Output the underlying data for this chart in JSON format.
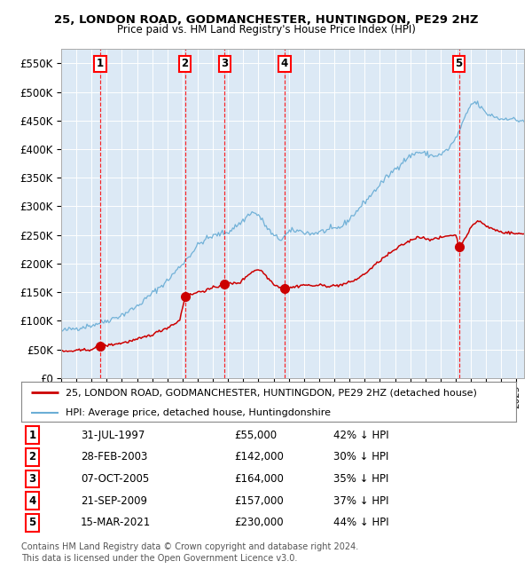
{
  "title1": "25, LONDON ROAD, GODMANCHESTER, HUNTINGDON, PE29 2HZ",
  "title2": "Price paid vs. HM Land Registry's House Price Index (HPI)",
  "bg_color": "#dce9f5",
  "hpi_color": "#6baed6",
  "price_color": "#cc0000",
  "ylim": [
    0,
    575000
  ],
  "yticks": [
    0,
    50000,
    100000,
    150000,
    200000,
    250000,
    300000,
    350000,
    400000,
    450000,
    500000,
    550000
  ],
  "xlim_start": 1995,
  "xlim_end": 2025.5,
  "sales": [
    {
      "num": 1,
      "date": "31-JUL-1997",
      "year": 1997.58,
      "price": 55000,
      "pct": "42%",
      "dir": "↓"
    },
    {
      "num": 2,
      "date": "28-FEB-2003",
      "year": 2003.16,
      "price": 142000,
      "pct": "30%",
      "dir": "↓"
    },
    {
      "num": 3,
      "date": "07-OCT-2005",
      "year": 2005.77,
      "price": 164000,
      "pct": "35%",
      "dir": "↓"
    },
    {
      "num": 4,
      "date": "21-SEP-2009",
      "year": 2009.72,
      "price": 157000,
      "pct": "37%",
      "dir": "↓"
    },
    {
      "num": 5,
      "date": "15-MAR-2021",
      "year": 2021.21,
      "price": 230000,
      "pct": "44%",
      "dir": "↓"
    }
  ],
  "legend_line1": "25, LONDON ROAD, GODMANCHESTER, HUNTINGDON, PE29 2HZ (detached house)",
  "legend_line2": "HPI: Average price, detached house, Huntingdonshire",
  "footer1": "Contains HM Land Registry data © Crown copyright and database right 2024.",
  "footer2": "This data is licensed under the Open Government Licence v3.0.",
  "hpi_anchors": [
    [
      1995.0,
      82000
    ],
    [
      1996.0,
      87000
    ],
    [
      1997.0,
      92000
    ],
    [
      1998.0,
      100000
    ],
    [
      1999.0,
      110000
    ],
    [
      2000.0,
      125000
    ],
    [
      2001.0,
      148000
    ],
    [
      2002.0,
      170000
    ],
    [
      2003.0,
      200000
    ],
    [
      2003.5,
      215000
    ],
    [
      2004.0,
      232000
    ],
    [
      2004.5,
      242000
    ],
    [
      2005.0,
      248000
    ],
    [
      2005.5,
      252000
    ],
    [
      2006.0,
      255000
    ],
    [
      2007.0,
      275000
    ],
    [
      2007.5,
      290000
    ],
    [
      2008.0,
      285000
    ],
    [
      2008.5,
      265000
    ],
    [
      2009.0,
      248000
    ],
    [
      2009.5,
      242000
    ],
    [
      2010.0,
      255000
    ],
    [
      2010.5,
      258000
    ],
    [
      2011.0,
      255000
    ],
    [
      2011.5,
      252000
    ],
    [
      2012.0,
      255000
    ],
    [
      2012.5,
      258000
    ],
    [
      2013.0,
      260000
    ],
    [
      2013.5,
      265000
    ],
    [
      2014.0,
      278000
    ],
    [
      2014.5,
      292000
    ],
    [
      2015.0,
      308000
    ],
    [
      2015.5,
      322000
    ],
    [
      2016.0,
      338000
    ],
    [
      2016.5,
      352000
    ],
    [
      2017.0,
      365000
    ],
    [
      2017.5,
      378000
    ],
    [
      2018.0,
      388000
    ],
    [
      2018.5,
      395000
    ],
    [
      2019.0,
      392000
    ],
    [
      2019.5,
      388000
    ],
    [
      2020.0,
      390000
    ],
    [
      2020.5,
      400000
    ],
    [
      2021.0,
      418000
    ],
    [
      2021.5,
      448000
    ],
    [
      2022.0,
      478000
    ],
    [
      2022.3,
      482000
    ],
    [
      2022.6,
      475000
    ],
    [
      2023.0,
      462000
    ],
    [
      2023.5,
      458000
    ],
    [
      2024.0,
      452000
    ],
    [
      2024.5,
      455000
    ],
    [
      2025.0,
      450000
    ]
  ],
  "price_anchors": [
    [
      1995.0,
      46000
    ],
    [
      1996.0,
      47500
    ],
    [
      1997.0,
      50000
    ],
    [
      1997.58,
      55000
    ],
    [
      1998.0,
      57000
    ],
    [
      1999.0,
      61000
    ],
    [
      2000.0,
      67000
    ],
    [
      2001.0,
      76000
    ],
    [
      2002.0,
      88000
    ],
    [
      2002.8,
      100000
    ],
    [
      2003.16,
      142000
    ],
    [
      2003.6,
      146000
    ],
    [
      2004.0,
      150000
    ],
    [
      2004.5,
      153000
    ],
    [
      2005.0,
      157000
    ],
    [
      2005.77,
      164000
    ],
    [
      2006.0,
      165000
    ],
    [
      2006.3,
      165000
    ],
    [
      2006.8,
      167000
    ],
    [
      2007.0,
      172000
    ],
    [
      2007.3,
      180000
    ],
    [
      2007.6,
      186000
    ],
    [
      2008.0,
      190000
    ],
    [
      2008.3,
      185000
    ],
    [
      2008.6,
      175000
    ],
    [
      2009.0,
      165000
    ],
    [
      2009.4,
      158000
    ],
    [
      2009.72,
      157000
    ],
    [
      2010.0,
      157000
    ],
    [
      2010.5,
      160000
    ],
    [
      2011.0,
      163000
    ],
    [
      2011.5,
      161000
    ],
    [
      2012.0,
      162000
    ],
    [
      2012.5,
      161000
    ],
    [
      2013.0,
      161000
    ],
    [
      2013.5,
      163000
    ],
    [
      2014.0,
      167000
    ],
    [
      2014.5,
      173000
    ],
    [
      2015.0,
      182000
    ],
    [
      2015.5,
      193000
    ],
    [
      2016.0,
      205000
    ],
    [
      2016.5,
      215000
    ],
    [
      2017.0,
      224000
    ],
    [
      2017.5,
      233000
    ],
    [
      2018.0,
      240000
    ],
    [
      2018.5,
      247000
    ],
    [
      2019.0,
      244000
    ],
    [
      2019.5,
      242000
    ],
    [
      2020.0,
      245000
    ],
    [
      2020.5,
      249000
    ],
    [
      2021.0,
      250000
    ],
    [
      2021.21,
      230000
    ],
    [
      2021.5,
      240000
    ],
    [
      2022.0,
      262000
    ],
    [
      2022.3,
      272000
    ],
    [
      2022.5,
      275000
    ],
    [
      2022.7,
      272000
    ],
    [
      2023.0,
      265000
    ],
    [
      2023.5,
      260000
    ],
    [
      2024.0,
      255000
    ],
    [
      2024.5,
      254000
    ],
    [
      2025.0,
      252000
    ]
  ]
}
